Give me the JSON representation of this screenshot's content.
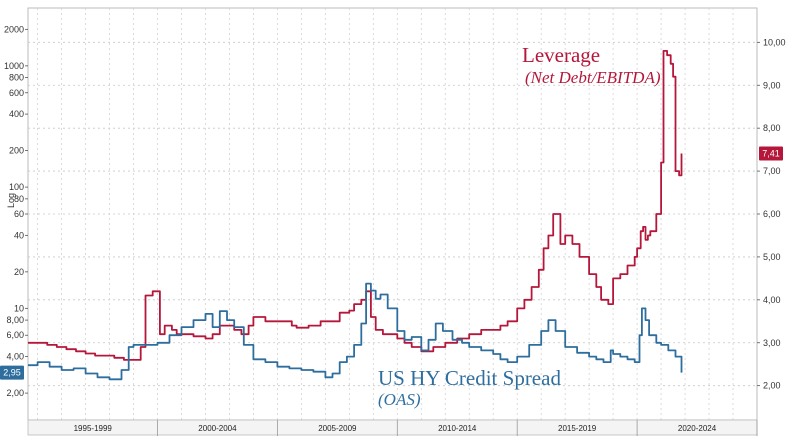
{
  "chart_data": {
    "type": "line",
    "title": "",
    "xlabel": "",
    "grid": true,
    "left_axis": {
      "scale": "log",
      "label": "Log",
      "ylim": [
        1.2,
        3000
      ],
      "ticks": [
        {
          "label": "2,00",
          "value": 2
        },
        {
          "label": "4,00",
          "value": 4
        },
        {
          "label": "6,00",
          "value": 6
        },
        {
          "label": "8,00",
          "value": 8
        },
        {
          "label": "10",
          "value": 10
        },
        {
          "label": "20",
          "value": 20
        },
        {
          "label": "40",
          "value": 40
        },
        {
          "label": "60",
          "value": 60
        },
        {
          "label": "80",
          "value": 80
        },
        {
          "label": "100",
          "value": 100
        },
        {
          "label": "200",
          "value": 200
        },
        {
          "label": "400",
          "value": 400
        },
        {
          "label": "600",
          "value": 600
        },
        {
          "label": "800",
          "value": 800
        },
        {
          "label": "1000",
          "value": 1000
        },
        {
          "label": "2000",
          "value": 2000
        }
      ]
    },
    "right_axis": {
      "scale": "linear",
      "ylim": [
        1.2,
        10.8
      ],
      "ticks": [
        {
          "label": "2,00",
          "value": 2
        },
        {
          "label": "3,00",
          "value": 3
        },
        {
          "label": "4,00",
          "value": 4
        },
        {
          "label": "5,00",
          "value": 5
        },
        {
          "label": "6,00",
          "value": 6
        },
        {
          "label": "7,00",
          "value": 7
        },
        {
          "label": "8,00",
          "value": 8
        },
        {
          "label": "9,00",
          "value": 9
        },
        {
          "label": "10,00",
          "value": 10
        }
      ]
    },
    "x_range": [
      1994.6,
      2025.0
    ],
    "x_periods": [
      {
        "label": "1995-1999",
        "start": 1994.6,
        "end": 2000.0
      },
      {
        "label": "2000-2004",
        "start": 2000.0,
        "end": 2005.0
      },
      {
        "label": "2005-2009",
        "start": 2005.0,
        "end": 2010.0
      },
      {
        "label": "2010-2014",
        "start": 2010.0,
        "end": 2015.0
      },
      {
        "label": "2015-2019",
        "start": 2015.0,
        "end": 2020.0
      },
      {
        "label": "2020-2024",
        "start": 2020.0,
        "end": 2025.0
      }
    ],
    "series": [
      {
        "name": "Leverage",
        "subtitle": "(Net Debt/EBITDA)",
        "axis": "right",
        "color": "#b5173a",
        "last_value_label": "7,41",
        "x": [
          1994.6,
          1995.0,
          1995.4,
          1995.8,
          1996.2,
          1996.6,
          1997.0,
          1997.4,
          1997.8,
          1998.2,
          1998.6,
          1999.0,
          1999.3,
          1999.5,
          1999.8,
          2000.1,
          2000.3,
          2000.6,
          2000.8,
          2001.0,
          2001.5,
          2002.0,
          2002.3,
          2002.6,
          2003.0,
          2003.2,
          2003.5,
          2003.8,
          2004.0,
          2004.5,
          2005.0,
          2005.4,
          2005.6,
          2005.8,
          2006.3,
          2006.8,
          2007.2,
          2007.6,
          2008.0,
          2008.2,
          2008.5,
          2008.7,
          2008.9,
          2009.1,
          2009.4,
          2009.7,
          2010.0,
          2010.3,
          2010.6,
          2011.0,
          2011.5,
          2012.0,
          2012.5,
          2013.0,
          2013.5,
          2014.0,
          2014.3,
          2014.6,
          2015.0,
          2015.3,
          2015.6,
          2015.9,
          2016.1,
          2016.3,
          2016.5,
          2016.8,
          2017.0,
          2017.3,
          2017.6,
          2018.0,
          2018.3,
          2018.5,
          2018.8,
          2019.0,
          2019.3,
          2019.6,
          2019.9,
          2020.0,
          2020.15,
          2020.25,
          2020.35,
          2020.45,
          2020.55,
          2020.65,
          2020.8,
          2021.0,
          2021.1,
          2021.25,
          2021.4,
          2021.5,
          2021.6,
          2021.75,
          2021.85
        ],
        "y": [
          3.0,
          3.0,
          2.95,
          2.9,
          2.85,
          2.8,
          2.75,
          2.7,
          2.7,
          2.65,
          2.6,
          2.6,
          2.9,
          4.1,
          4.2,
          3.2,
          3.4,
          3.3,
          3.2,
          3.2,
          3.15,
          3.1,
          3.2,
          3.4,
          3.4,
          3.3,
          3.2,
          3.4,
          3.6,
          3.5,
          3.5,
          3.5,
          3.4,
          3.35,
          3.4,
          3.5,
          3.5,
          3.7,
          3.75,
          3.9,
          4.0,
          4.2,
          3.6,
          3.3,
          3.2,
          3.2,
          3.1,
          3.0,
          2.9,
          2.8,
          2.9,
          3.0,
          3.1,
          3.2,
          3.3,
          3.3,
          3.4,
          3.5,
          3.8,
          4.0,
          4.3,
          4.7,
          5.2,
          5.5,
          6.0,
          5.3,
          5.5,
          5.3,
          5.0,
          4.6,
          4.3,
          4.0,
          3.9,
          4.5,
          4.6,
          4.8,
          5.0,
          5.2,
          5.6,
          5.7,
          5.4,
          5.5,
          5.6,
          5.6,
          6.0,
          7.2,
          9.8,
          9.7,
          9.5,
          9.2,
          7.0,
          6.9,
          7.41
        ]
      },
      {
        "name": "US HY Credit Spread",
        "subtitle": "(OAS)",
        "axis": "left",
        "color": "#2e6e9e",
        "last_value_label": "2,95",
        "x": [
          1994.6,
          1995.0,
          1995.5,
          1996.0,
          1996.5,
          1997.0,
          1997.5,
          1998.0,
          1998.5,
          1998.8,
          1999.0,
          1999.5,
          2000.0,
          2000.5,
          2001.0,
          2001.5,
          2002.0,
          2002.3,
          2002.6,
          2002.9,
          2003.2,
          2003.6,
          2004.0,
          2004.5,
          2005.0,
          2005.5,
          2006.0,
          2006.5,
          2007.0,
          2007.3,
          2007.6,
          2007.9,
          2008.2,
          2008.5,
          2008.7,
          2008.9,
          2009.1,
          2009.3,
          2009.6,
          2010.0,
          2010.3,
          2010.6,
          2011.0,
          2011.3,
          2011.6,
          2011.9,
          2012.3,
          2012.7,
          2013.0,
          2013.5,
          2014.0,
          2014.3,
          2014.6,
          2015.0,
          2015.5,
          2016.0,
          2016.3,
          2016.6,
          2017.0,
          2017.5,
          2018.0,
          2018.3,
          2018.6,
          2018.9,
          2019.0,
          2019.3,
          2019.6,
          2019.9,
          2020.1,
          2020.2,
          2020.35,
          2020.5,
          2020.8,
          2021.0,
          2021.3,
          2021.6,
          2021.85
        ],
        "y": [
          3.4,
          3.6,
          3.3,
          3.1,
          3.2,
          2.9,
          2.7,
          2.6,
          3.1,
          4.8,
          5.0,
          5.0,
          5.2,
          6.0,
          7.0,
          8.0,
          9.0,
          7.0,
          9.5,
          8.0,
          7.0,
          5.0,
          3.8,
          3.6,
          3.3,
          3.2,
          3.1,
          3.0,
          2.7,
          2.9,
          3.6,
          4.0,
          5.0,
          7.5,
          16.0,
          14.0,
          12.0,
          13.0,
          10.0,
          6.5,
          5.5,
          5.8,
          4.5,
          5.5,
          7.5,
          6.5,
          5.5,
          5.2,
          4.8,
          4.5,
          4.2,
          3.8,
          3.6,
          4.0,
          5.0,
          6.5,
          8.0,
          6.5,
          4.8,
          4.3,
          4.0,
          3.8,
          3.6,
          4.5,
          4.2,
          4.0,
          3.8,
          3.6,
          6.0,
          10.0,
          8.0,
          6.0,
          5.2,
          5.0,
          4.5,
          4.0,
          2.95
        ]
      }
    ]
  }
}
